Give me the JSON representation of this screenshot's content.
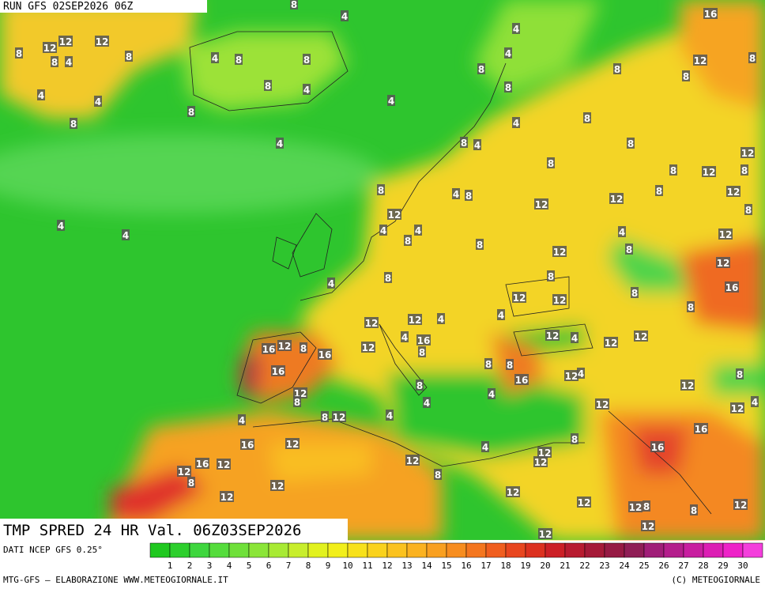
{
  "header": {
    "run": "RUN GFS 02SEP2026 06Z"
  },
  "title": "TMP SPRED 24 HR Val. 06Z03SEP2026",
  "source": "DATI NCEP GFS 0.25°",
  "footer": {
    "left": "MTG-GFS — ELABORAZIONE WWW.METEOGIORNALE.IT",
    "right": "(C) METEOGIORNALE"
  },
  "legend": {
    "ticks": [
      1,
      2,
      3,
      4,
      5,
      6,
      7,
      8,
      9,
      10,
      11,
      12,
      13,
      14,
      15,
      16,
      17,
      18,
      19,
      20,
      21,
      22,
      23,
      24,
      25,
      26,
      27,
      28,
      29,
      30
    ],
    "colors": [
      "#1fc81f",
      "#2dcf2d",
      "#3ed63e",
      "#55dc3c",
      "#6fe03a",
      "#8be538",
      "#a8ea34",
      "#c8ee2c",
      "#e2f21e",
      "#f2ef1a",
      "#f8e11a",
      "#fad21c",
      "#fbc21e",
      "#fbb220",
      "#f9a020",
      "#f78d1f",
      "#f4761f",
      "#f05e1f",
      "#e8461f",
      "#dc311f",
      "#cc2026",
      "#b81c30",
      "#a51a38",
      "#961a44",
      "#8f1e56",
      "#a01e78",
      "#b41e8c",
      "#c81ea0",
      "#dc1eb4",
      "#ee22c8",
      "#f43edc"
    ]
  },
  "map_labels": [
    8,
    12,
    12,
    12,
    4,
    8,
    4,
    4,
    8,
    8,
    4,
    8,
    8,
    8,
    8,
    4,
    4,
    8,
    4,
    4,
    4,
    4,
    4,
    8,
    8,
    4,
    4,
    8,
    8,
    12,
    16,
    8,
    8,
    8,
    8,
    8,
    12,
    12,
    8,
    12,
    12,
    8,
    12,
    8,
    4,
    4,
    8,
    8,
    12,
    4,
    8,
    4,
    8,
    12,
    4,
    8,
    12,
    8,
    12,
    16,
    8,
    8,
    12,
    8,
    12,
    4,
    8,
    4,
    12,
    12,
    4,
    4,
    16,
    8,
    12,
    16,
    8,
    12,
    16,
    16,
    12,
    8,
    8,
    12,
    4,
    8,
    4,
    8,
    8,
    16,
    4,
    4,
    12,
    12,
    12,
    12,
    4,
    12,
    12,
    8,
    4,
    12,
    16,
    16,
    8,
    12,
    12,
    4,
    12,
    8,
    12,
    16,
    4,
    16,
    12,
    12,
    8,
    12,
    12,
    12,
    12,
    12,
    8,
    8,
    12,
    12,
    12
  ]
}
